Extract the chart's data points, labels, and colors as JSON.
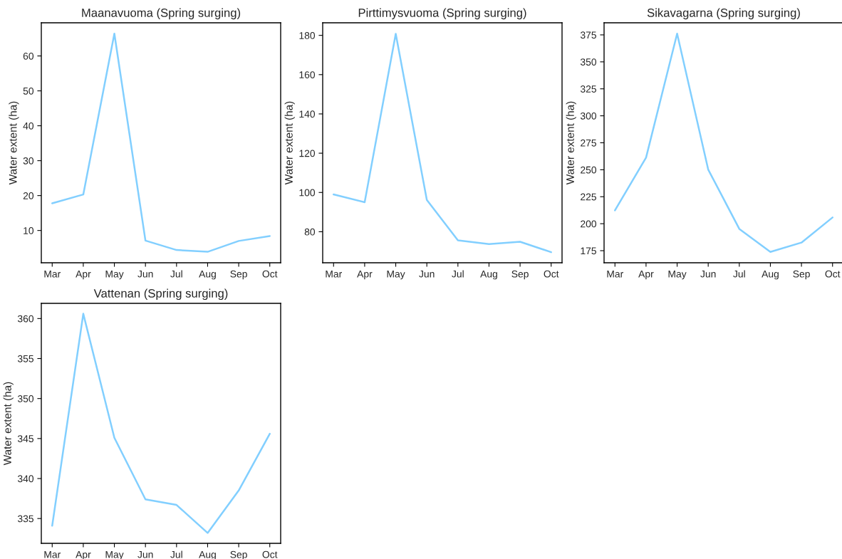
{
  "chart_data": [
    {
      "type": "line",
      "title": "Maanavuoma (Spring surging)",
      "ylabel": "Water extent (ha)",
      "categories": [
        "Mar",
        "Apr",
        "May",
        "Jun",
        "Jul",
        "Aug",
        "Sep",
        "Oct"
      ],
      "series": [
        {
          "color": "#82cfff",
          "values": [
            17.8,
            20.3,
            66.4,
            7.1,
            4.4,
            3.9,
            7.0,
            8.4
          ]
        }
      ],
      "ylim": [
        0.75,
        69.5
      ],
      "yticks": [
        10,
        20,
        30,
        40,
        50,
        60
      ]
    },
    {
      "type": "line",
      "title": "Pirttimysvuoma (Spring surging)",
      "ylabel": "Water extent (ha)",
      "categories": [
        "Mar",
        "Apr",
        "May",
        "Jun",
        "Jul",
        "Aug",
        "Sep",
        "Oct"
      ],
      "series": [
        {
          "color": "#82cfff",
          "values": [
            99.0,
            95.0,
            180.8,
            96.2,
            75.6,
            73.7,
            74.9,
            69.6
          ]
        }
      ],
      "ylim": [
        64.2,
        186.4
      ],
      "yticks": [
        80,
        100,
        120,
        140,
        160,
        180
      ]
    },
    {
      "type": "line",
      "title": "Sikavagarna (Spring surging)",
      "ylabel": "Water extent (ha)",
      "categories": [
        "Mar",
        "Apr",
        "May",
        "Jun",
        "Jul",
        "Aug",
        "Sep",
        "Oct"
      ],
      "series": [
        {
          "color": "#82cfff",
          "values": [
            212.4,
            261.2,
            376.1,
            250.2,
            195.2,
            173.9,
            182.5,
            205.8
          ]
        }
      ],
      "ylim": [
        163.8,
        386.2
      ],
      "yticks": [
        175,
        200,
        225,
        250,
        275,
        300,
        325,
        350,
        375
      ]
    },
    {
      "type": "line",
      "title": "Vattenan (Spring surging)",
      "ylabel": "Water extent (ha)",
      "categories": [
        "Mar",
        "Apr",
        "May",
        "Jun",
        "Jul",
        "Aug",
        "Sep",
        "Oct"
      ],
      "series": [
        {
          "color": "#82cfff",
          "values": [
            334.1,
            360.6,
            345.1,
            337.4,
            336.7,
            333.2,
            338.5,
            345.6
          ]
        }
      ],
      "ylim": [
        331.9,
        361.9
      ],
      "yticks": [
        335,
        340,
        345,
        350,
        355,
        360
      ]
    }
  ]
}
